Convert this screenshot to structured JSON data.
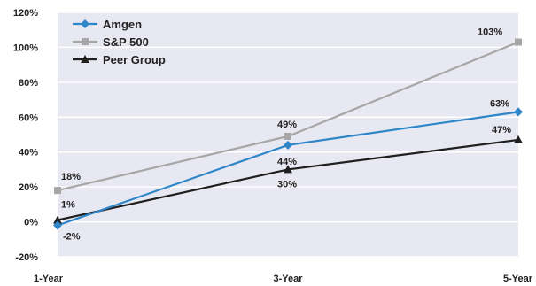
{
  "chart_data": {
    "type": "line",
    "categories": [
      "1-Year",
      "3-Year",
      "5-Year"
    ],
    "ylim": [
      -20,
      120
    ],
    "yticks": [
      -20,
      0,
      20,
      40,
      60,
      80,
      100,
      120
    ],
    "ytick_labels": [
      "-20%",
      "0%",
      "20%",
      "40%",
      "60%",
      "80%",
      "100%",
      "120%"
    ],
    "plot_background": "#e8e8f2",
    "grid": true,
    "legend_position": "top-left",
    "series": [
      {
        "name": "Amgen",
        "values": [
          -2,
          44,
          63
        ],
        "labels": [
          "-2%",
          "44%",
          "63%"
        ],
        "color": "#2e86c8",
        "marker": "diamond"
      },
      {
        "name": "S&P 500",
        "values": [
          18,
          49,
          103
        ],
        "labels": [
          "18%",
          "49%",
          "103%"
        ],
        "color": "#a6a6a6",
        "marker": "square"
      },
      {
        "name": "Peer Group",
        "values": [
          1,
          30,
          47
        ],
        "labels": [
          "1%",
          "30%",
          "47%"
        ],
        "color": "#1f1f1f",
        "marker": "triangle"
      }
    ]
  }
}
